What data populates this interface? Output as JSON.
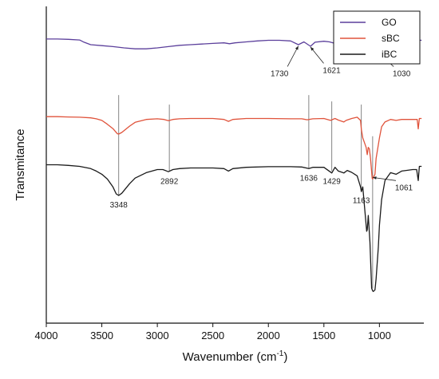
{
  "chart_data": {
    "type": "line",
    "xlabel": "Wavenumber",
    "xlabel_unit": "(cm",
    "xlabel_sup": "-1",
    "xlabel_close": ")",
    "ylabel": "Transmitance",
    "xlim": [
      4000,
      600
    ],
    "x_reversed": true,
    "x_ticks": [
      4000,
      3500,
      3000,
      2500,
      2000,
      1500,
      1000
    ],
    "x_tick_labels": [
      "4000",
      "3500",
      "3000",
      "2500",
      "2000",
      "1500",
      "1000"
    ],
    "y_ticks_shown": false,
    "grid": false,
    "legend_position": "top-right",
    "series": [
      {
        "name": "GO",
        "color": "#5b3f9b",
        "points": [
          [
            4000,
            0.897
          ],
          [
            3900,
            0.897
          ],
          [
            3800,
            0.896
          ],
          [
            3700,
            0.894
          ],
          [
            3660,
            0.887
          ],
          [
            3600,
            0.879
          ],
          [
            3500,
            0.876
          ],
          [
            3400,
            0.873
          ],
          [
            3300,
            0.869
          ],
          [
            3200,
            0.866
          ],
          [
            3100,
            0.866
          ],
          [
            3000,
            0.869
          ],
          [
            2900,
            0.873
          ],
          [
            2800,
            0.877
          ],
          [
            2700,
            0.879
          ],
          [
            2600,
            0.881
          ],
          [
            2500,
            0.883
          ],
          [
            2400,
            0.885
          ],
          [
            2350,
            0.882
          ],
          [
            2300,
            0.885
          ],
          [
            2200,
            0.888
          ],
          [
            2100,
            0.891
          ],
          [
            2000,
            0.893
          ],
          [
            1900,
            0.893
          ],
          [
            1800,
            0.891
          ],
          [
            1730,
            0.879
          ],
          [
            1680,
            0.888
          ],
          [
            1621,
            0.874
          ],
          [
            1580,
            0.887
          ],
          [
            1500,
            0.89
          ],
          [
            1450,
            0.888
          ],
          [
            1400,
            0.883
          ],
          [
            1300,
            0.887
          ],
          [
            1250,
            0.885
          ],
          [
            1200,
            0.883
          ],
          [
            1150,
            0.887
          ],
          [
            1100,
            0.885
          ],
          [
            1060,
            0.874
          ],
          [
            1030,
            0.867
          ],
          [
            1000,
            0.877
          ],
          [
            950,
            0.885
          ],
          [
            900,
            0.891
          ],
          [
            800,
            0.894
          ],
          [
            700,
            0.894
          ],
          [
            620,
            0.893
          ]
        ]
      },
      {
        "name": "sBC",
        "color": "#e0533b",
        "points": [
          [
            4000,
            0.652
          ],
          [
            3900,
            0.652
          ],
          [
            3800,
            0.651
          ],
          [
            3700,
            0.65
          ],
          [
            3600,
            0.648
          ],
          [
            3550,
            0.645
          ],
          [
            3500,
            0.64
          ],
          [
            3450,
            0.628
          ],
          [
            3400,
            0.614
          ],
          [
            3360,
            0.598
          ],
          [
            3348,
            0.597
          ],
          [
            3320,
            0.602
          ],
          [
            3250,
            0.622
          ],
          [
            3200,
            0.634
          ],
          [
            3100,
            0.643
          ],
          [
            3000,
            0.645
          ],
          [
            2940,
            0.643
          ],
          [
            2900,
            0.639
          ],
          [
            2860,
            0.643
          ],
          [
            2800,
            0.645
          ],
          [
            2700,
            0.646
          ],
          [
            2600,
            0.646
          ],
          [
            2500,
            0.646
          ],
          [
            2400,
            0.643
          ],
          [
            2360,
            0.637
          ],
          [
            2320,
            0.643
          ],
          [
            2200,
            0.646
          ],
          [
            2000,
            0.646
          ],
          [
            1800,
            0.645
          ],
          [
            1700,
            0.645
          ],
          [
            1650,
            0.642
          ],
          [
            1600,
            0.645
          ],
          [
            1500,
            0.646
          ],
          [
            1440,
            0.64
          ],
          [
            1400,
            0.646
          ],
          [
            1370,
            0.641
          ],
          [
            1320,
            0.635
          ],
          [
            1300,
            0.64
          ],
          [
            1250,
            0.646
          ],
          [
            1200,
            0.65
          ],
          [
            1170,
            0.64
          ],
          [
            1163,
            0.612
          ],
          [
            1150,
            0.585
          ],
          [
            1120,
            0.555
          ],
          [
            1110,
            0.532
          ],
          [
            1100,
            0.555
          ],
          [
            1090,
            0.55
          ],
          [
            1080,
            0.52
          ],
          [
            1065,
            0.457
          ],
          [
            1061,
            0.455
          ],
          [
            1055,
            0.46
          ],
          [
            1040,
            0.47
          ],
          [
            1030,
            0.52
          ],
          [
            1000,
            0.585
          ],
          [
            980,
            0.62
          ],
          [
            950,
            0.635
          ],
          [
            900,
            0.643
          ],
          [
            850,
            0.64
          ],
          [
            800,
            0.643
          ],
          [
            700,
            0.643
          ],
          [
            660,
            0.643
          ],
          [
            650,
            0.613
          ],
          [
            640,
            0.646
          ],
          [
            620,
            0.646
          ]
        ]
      },
      {
        "name": "iBC",
        "color": "#1a1a1a",
        "points": [
          [
            4000,
            0.5
          ],
          [
            3900,
            0.5
          ],
          [
            3800,
            0.498
          ],
          [
            3700,
            0.495
          ],
          [
            3600,
            0.488
          ],
          [
            3550,
            0.48
          ],
          [
            3500,
            0.47
          ],
          [
            3450,
            0.455
          ],
          [
            3400,
            0.43
          ],
          [
            3370,
            0.408
          ],
          [
            3348,
            0.403
          ],
          [
            3320,
            0.41
          ],
          [
            3250,
            0.44
          ],
          [
            3200,
            0.458
          ],
          [
            3100,
            0.475
          ],
          [
            3000,
            0.485
          ],
          [
            2950,
            0.485
          ],
          [
            2900,
            0.478
          ],
          [
            2860,
            0.485
          ],
          [
            2800,
            0.488
          ],
          [
            2700,
            0.49
          ],
          [
            2600,
            0.49
          ],
          [
            2500,
            0.49
          ],
          [
            2400,
            0.488
          ],
          [
            2360,
            0.48
          ],
          [
            2320,
            0.488
          ],
          [
            2200,
            0.492
          ],
          [
            2000,
            0.494
          ],
          [
            1800,
            0.494
          ],
          [
            1700,
            0.493
          ],
          [
            1636,
            0.488
          ],
          [
            1600,
            0.492
          ],
          [
            1500,
            0.492
          ],
          [
            1429,
            0.474
          ],
          [
            1400,
            0.492
          ],
          [
            1370,
            0.48
          ],
          [
            1320,
            0.474
          ],
          [
            1290,
            0.482
          ],
          [
            1250,
            0.476
          ],
          [
            1200,
            0.465
          ],
          [
            1170,
            0.43
          ],
          [
            1163,
            0.415
          ],
          [
            1150,
            0.43
          ],
          [
            1130,
            0.35
          ],
          [
            1115,
            0.29
          ],
          [
            1110,
            0.295
          ],
          [
            1100,
            0.34
          ],
          [
            1085,
            0.255
          ],
          [
            1070,
            0.11
          ],
          [
            1061,
            0.102
          ],
          [
            1055,
            0.1
          ],
          [
            1040,
            0.105
          ],
          [
            1030,
            0.14
          ],
          [
            1010,
            0.24
          ],
          [
            1000,
            0.31
          ],
          [
            980,
            0.39
          ],
          [
            950,
            0.45
          ],
          [
            900,
            0.475
          ],
          [
            850,
            0.47
          ],
          [
            800,
            0.48
          ],
          [
            700,
            0.485
          ],
          [
            665,
            0.485
          ],
          [
            650,
            0.45
          ],
          [
            640,
            0.495
          ],
          [
            620,
            0.495
          ]
        ]
      }
    ],
    "vertical_markers": [
      {
        "x": 3348,
        "label": "3348",
        "y_top": 0.72,
        "y_bottom": 0.405
      },
      {
        "x": 2892,
        "label": "2892",
        "y_top": 0.69,
        "y_bottom": 0.48
      },
      {
        "x": 1636,
        "label": "1636",
        "y_top": 0.72,
        "y_bottom": 0.49
      },
      {
        "x": 1429,
        "label": "1429",
        "y_top": 0.7,
        "y_bottom": 0.48
      },
      {
        "x": 1163,
        "label": "1163",
        "y_top": 0.69,
        "y_bottom": 0.42
      },
      {
        "x": 1061,
        "label": "1061",
        "y_top": 0.59,
        "y_bottom": 0.11
      }
    ],
    "annotations": [
      {
        "label": "1730",
        "label_x": 1900,
        "label_y": 0.8,
        "arrow_x": 1730,
        "arrow_y": 0.875
      },
      {
        "label": "1621",
        "label_x": 1430,
        "label_y": 0.81,
        "arrow_x": 1621,
        "arrow_y": 0.872
      },
      {
        "label": "1030",
        "label_x": 800,
        "label_y": 0.8,
        "arrow_x": 1030,
        "arrow_y": 0.86
      },
      {
        "label": "1061",
        "label_x": 780,
        "label_y": 0.44,
        "arrow_x": 1061,
        "arrow_y": 0.46
      }
    ]
  }
}
